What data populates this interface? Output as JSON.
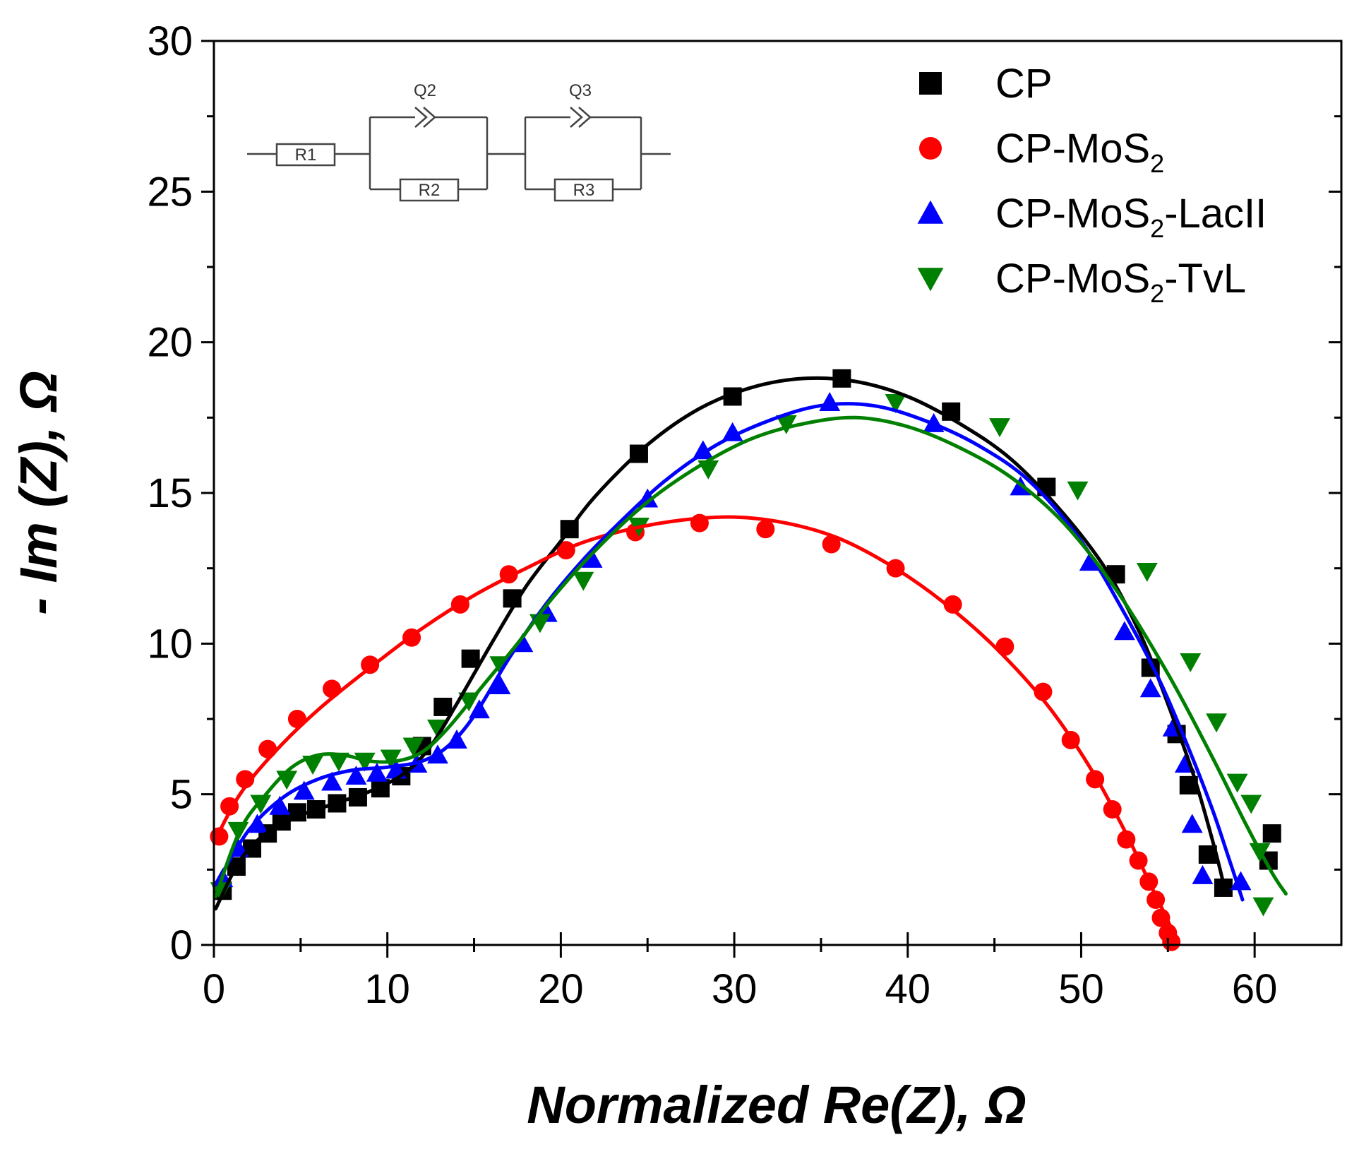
{
  "chart_data": {
    "type": "scatter",
    "xlabel": "Normalized Re(Z), Ω",
    "ylabel": "- Im (Z), Ω",
    "xlim": [
      0,
      65
    ],
    "ylim": [
      0,
      30
    ],
    "x_ticks": [
      "0",
      "10",
      "20",
      "30",
      "40",
      "50",
      "60"
    ],
    "y_ticks": [
      "0",
      "5",
      "10",
      "15",
      "20",
      "25",
      "30"
    ],
    "legend_position": "top-right",
    "inset": {
      "description": "equivalent circuit",
      "labels": [
        "R1",
        "Q2",
        "R2",
        "Q3",
        "R3"
      ]
    },
    "series": [
      {
        "name": "CP",
        "legend_main": "CP",
        "legend_sub": "",
        "legend_tail": "",
        "marker": "square",
        "color": "#000000",
        "points": [
          [
            0.5,
            1.8
          ],
          [
            1.3,
            2.6
          ],
          [
            2.2,
            3.2
          ],
          [
            3.1,
            3.7
          ],
          [
            3.9,
            4.1
          ],
          [
            4.8,
            4.4
          ],
          [
            5.9,
            4.5
          ],
          [
            7.1,
            4.7
          ],
          [
            8.3,
            4.9
          ],
          [
            9.6,
            5.2
          ],
          [
            10.8,
            5.6
          ],
          [
            12.0,
            6.6
          ],
          [
            13.2,
            7.9
          ],
          [
            14.8,
            9.5
          ],
          [
            17.2,
            11.5
          ],
          [
            20.5,
            13.8
          ],
          [
            24.5,
            16.3
          ],
          [
            29.9,
            18.2
          ],
          [
            36.2,
            18.8
          ],
          [
            42.5,
            17.7
          ],
          [
            48.0,
            15.2
          ],
          [
            52.0,
            12.3
          ],
          [
            54.0,
            9.2
          ],
          [
            55.5,
            7.0
          ],
          [
            56.2,
            5.3
          ],
          [
            57.3,
            3.0
          ],
          [
            58.2,
            1.9
          ],
          [
            60.8,
            2.8
          ],
          [
            61.0,
            3.7
          ]
        ],
        "fit": [
          [
            0.1,
            1.2
          ],
          [
            1.5,
            2.8
          ],
          [
            3.0,
            3.7
          ],
          [
            5.0,
            4.3
          ],
          [
            7.0,
            4.7
          ],
          [
            9.0,
            5.1
          ],
          [
            11.0,
            5.7
          ],
          [
            12.5,
            6.6
          ],
          [
            14.0,
            8.0
          ],
          [
            16.0,
            10.0
          ],
          [
            18.0,
            11.9
          ],
          [
            20.0,
            13.4
          ],
          [
            22.0,
            14.9
          ],
          [
            25.0,
            16.6
          ],
          [
            28.0,
            17.8
          ],
          [
            31.0,
            18.5
          ],
          [
            34.0,
            18.8
          ],
          [
            37.0,
            18.7
          ],
          [
            40.0,
            18.2
          ],
          [
            43.0,
            17.3
          ],
          [
            46.0,
            16.1
          ],
          [
            49.0,
            14.3
          ],
          [
            51.5,
            12.4
          ],
          [
            53.5,
            10.2
          ],
          [
            55.0,
            8.0
          ],
          [
            56.5,
            5.6
          ],
          [
            57.7,
            3.2
          ],
          [
            58.3,
            1.8
          ]
        ]
      },
      {
        "name": "CP-MoS2",
        "legend_main": "CP-MoS",
        "legend_sub": "2",
        "legend_tail": "",
        "marker": "circle",
        "color": "#ff0000",
        "points": [
          [
            0.3,
            3.6
          ],
          [
            0.9,
            4.6
          ],
          [
            1.8,
            5.5
          ],
          [
            3.1,
            6.5
          ],
          [
            4.8,
            7.5
          ],
          [
            6.8,
            8.5
          ],
          [
            9.0,
            9.3
          ],
          [
            11.4,
            10.2
          ],
          [
            14.2,
            11.3
          ],
          [
            17.0,
            12.3
          ],
          [
            20.3,
            13.1
          ],
          [
            24.3,
            13.7
          ],
          [
            28.0,
            14.0
          ],
          [
            31.8,
            13.8
          ],
          [
            35.6,
            13.3
          ],
          [
            39.3,
            12.5
          ],
          [
            42.6,
            11.3
          ],
          [
            45.6,
            9.9
          ],
          [
            47.8,
            8.4
          ],
          [
            49.4,
            6.8
          ],
          [
            50.8,
            5.5
          ],
          [
            51.8,
            4.5
          ],
          [
            52.6,
            3.5
          ],
          [
            53.3,
            2.8
          ],
          [
            53.9,
            2.1
          ],
          [
            54.3,
            1.5
          ],
          [
            54.6,
            0.9
          ],
          [
            55.0,
            0.4
          ],
          [
            55.2,
            0.1
          ]
        ],
        "fit": [
          [
            0.0,
            3.4
          ],
          [
            1.5,
            5.0
          ],
          [
            3.5,
            6.4
          ],
          [
            6.0,
            7.8
          ],
          [
            9.0,
            9.2
          ],
          [
            12.0,
            10.5
          ],
          [
            15.0,
            11.6
          ],
          [
            18.0,
            12.5
          ],
          [
            21.0,
            13.3
          ],
          [
            24.0,
            13.8
          ],
          [
            27.0,
            14.1
          ],
          [
            30.0,
            14.2
          ],
          [
            33.0,
            14.0
          ],
          [
            36.0,
            13.5
          ],
          [
            39.0,
            12.6
          ],
          [
            42.0,
            11.4
          ],
          [
            45.0,
            9.9
          ],
          [
            48.0,
            8.0
          ],
          [
            50.5,
            5.9
          ],
          [
            52.5,
            3.8
          ],
          [
            54.0,
            2.0
          ],
          [
            55.0,
            0.8
          ],
          [
            55.5,
            0.1
          ]
        ]
      },
      {
        "name": "CP-MoS2-LacII",
        "legend_main": "CP-MoS",
        "legend_sub": "2",
        "legend_tail": "-LacII",
        "marker": "triangle-up",
        "color": "#0000ff",
        "points": [
          [
            0.5,
            2.2
          ],
          [
            1.4,
            3.2
          ],
          [
            2.5,
            4.0
          ],
          [
            3.8,
            4.6
          ],
          [
            5.2,
            5.1
          ],
          [
            6.8,
            5.4
          ],
          [
            8.2,
            5.6
          ],
          [
            9.4,
            5.7
          ],
          [
            10.5,
            5.8
          ],
          [
            11.7,
            6.0
          ],
          [
            12.9,
            6.3
          ],
          [
            14.0,
            6.8
          ],
          [
            15.3,
            7.8
          ],
          [
            16.5,
            8.6
          ],
          [
            17.8,
            10.0
          ],
          [
            19.2,
            11.0
          ],
          [
            21.8,
            12.8
          ],
          [
            25.0,
            14.8
          ],
          [
            28.2,
            16.4
          ],
          [
            29.9,
            17.0
          ],
          [
            35.5,
            18.0
          ],
          [
            41.5,
            17.3
          ],
          [
            46.5,
            15.2
          ],
          [
            50.5,
            12.7
          ],
          [
            52.5,
            10.4
          ],
          [
            54.0,
            8.5
          ],
          [
            55.3,
            7.2
          ],
          [
            56.0,
            6.0
          ],
          [
            56.4,
            4.0
          ],
          [
            57.0,
            2.3
          ],
          [
            59.2,
            2.1
          ]
        ],
        "fit": [
          [
            0.1,
            2.0
          ],
          [
            2.0,
            3.8
          ],
          [
            4.0,
            4.9
          ],
          [
            6.0,
            5.5
          ],
          [
            8.0,
            5.8
          ],
          [
            10.0,
            5.9
          ],
          [
            12.0,
            6.1
          ],
          [
            13.5,
            6.6
          ],
          [
            15.0,
            7.6
          ],
          [
            17.0,
            9.5
          ],
          [
            19.0,
            11.2
          ],
          [
            21.0,
            12.6
          ],
          [
            23.0,
            13.8
          ],
          [
            26.0,
            15.4
          ],
          [
            29.0,
            16.6
          ],
          [
            32.0,
            17.4
          ],
          [
            35.0,
            17.9
          ],
          [
            38.0,
            17.9
          ],
          [
            41.0,
            17.4
          ],
          [
            44.0,
            16.6
          ],
          [
            47.0,
            15.4
          ],
          [
            50.0,
            13.4
          ],
          [
            52.5,
            11.0
          ],
          [
            54.5,
            8.8
          ],
          [
            56.0,
            6.8
          ],
          [
            57.5,
            4.6
          ],
          [
            58.5,
            2.9
          ],
          [
            59.3,
            1.5
          ]
        ]
      },
      {
        "name": "CP-MoS2-TvL",
        "legend_main": "CP-MoS",
        "legend_sub": "2",
        "legend_tail": "-TvL",
        "marker": "triangle-down",
        "color": "#008000",
        "points": [
          [
            0.4,
            1.8
          ],
          [
            1.4,
            3.8
          ],
          [
            2.7,
            4.7
          ],
          [
            4.2,
            5.5
          ],
          [
            5.7,
            6.0
          ],
          [
            7.2,
            6.1
          ],
          [
            8.7,
            6.1
          ],
          [
            10.2,
            6.2
          ],
          [
            11.5,
            6.6
          ],
          [
            12.9,
            7.2
          ],
          [
            14.7,
            8.1
          ],
          [
            16.5,
            9.3
          ],
          [
            18.8,
            10.7
          ],
          [
            21.3,
            12.1
          ],
          [
            24.5,
            13.9
          ],
          [
            28.5,
            15.8
          ],
          [
            33.0,
            17.3
          ],
          [
            39.3,
            18.0
          ],
          [
            45.3,
            17.2
          ],
          [
            49.8,
            15.1
          ],
          [
            53.8,
            12.4
          ],
          [
            56.3,
            9.4
          ],
          [
            57.8,
            7.4
          ],
          [
            59.0,
            5.4
          ],
          [
            59.8,
            4.7
          ],
          [
            60.3,
            3.1
          ],
          [
            60.5,
            1.3
          ]
        ],
        "fit": [
          [
            0.1,
            1.6
          ],
          [
            1.5,
            3.8
          ],
          [
            3.0,
            5.0
          ],
          [
            4.5,
            5.9
          ],
          [
            6.0,
            6.3
          ],
          [
            7.5,
            6.3
          ],
          [
            9.0,
            6.1
          ],
          [
            10.5,
            6.1
          ],
          [
            12.0,
            6.4
          ],
          [
            13.5,
            7.2
          ],
          [
            15.5,
            8.6
          ],
          [
            17.5,
            10.0
          ],
          [
            19.5,
            11.5
          ],
          [
            22.0,
            13.1
          ],
          [
            25.0,
            14.7
          ],
          [
            28.0,
            15.9
          ],
          [
            31.0,
            16.8
          ],
          [
            34.0,
            17.3
          ],
          [
            37.0,
            17.5
          ],
          [
            40.0,
            17.2
          ],
          [
            43.0,
            16.5
          ],
          [
            46.0,
            15.5
          ],
          [
            49.0,
            14.0
          ],
          [
            52.0,
            11.8
          ],
          [
            55.0,
            9.0
          ],
          [
            57.5,
            6.3
          ],
          [
            59.5,
            4.0
          ],
          [
            61.0,
            2.4
          ],
          [
            61.8,
            1.7
          ]
        ]
      }
    ]
  }
}
